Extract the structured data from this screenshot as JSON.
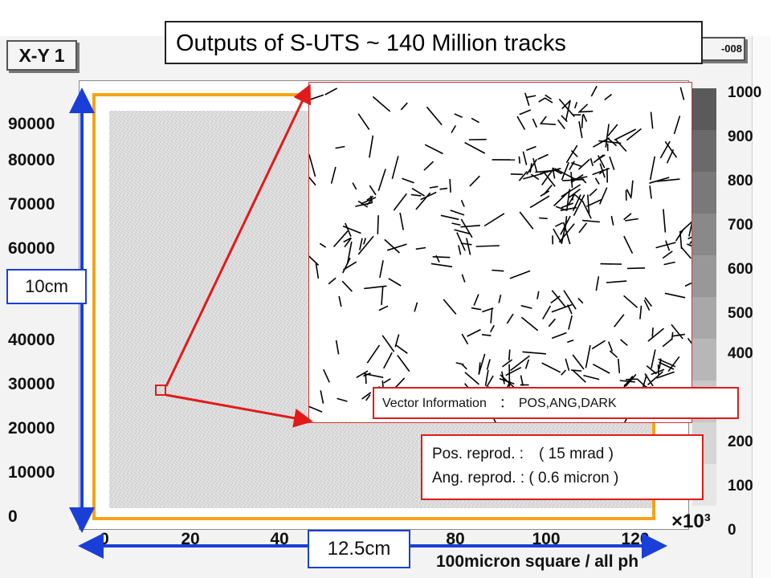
{
  "title": "Outputs of S-UTS ~ 140 Million tracks",
  "pad_tab": "X-Y 1",
  "stats_tab": "-008",
  "y_ticks": [
    "90000",
    "80000",
    "70000",
    "60000",
    "40000",
    "30000",
    "20000",
    "10000",
    "0"
  ],
  "x_ticks": [
    "0",
    "20",
    "40",
    "80",
    "100",
    "120"
  ],
  "x_multiplier": "×10³",
  "x_axis_title": "100micron square / all ph",
  "z_labels": [
    "1000",
    "900",
    "800",
    "700",
    "600",
    "500",
    "400",
    "200",
    "100",
    "0"
  ],
  "colors": {
    "orange_frame": "#f5a31a",
    "highlight_red": "#e01b1b",
    "dimension_blue": "#1a3fd8"
  },
  "dimension_vertical": "10cm",
  "dimension_horizontal": "12.5cm",
  "vector_info": "Vector Information　：　POS,ANG,DARK",
  "reproducibility": {
    "pos": "Pos. reprod.  :　( 15 mrad )",
    "ang": "Ang. reprod.  :  ( 0.6 micron )"
  }
}
